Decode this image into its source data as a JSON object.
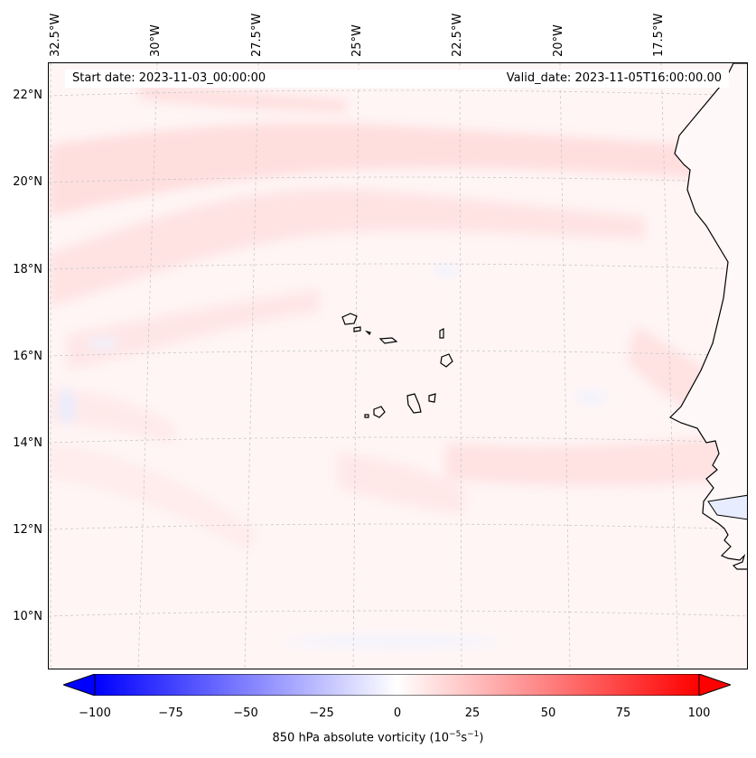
{
  "header": {
    "start_date": "Start date: 2023-11-03_00:00:00",
    "valid_date": "Valid_date: 2023-11-05T16:00:00.00"
  },
  "map": {
    "region": "Cape Verde / West African coast",
    "lon_labels": [
      "32.5°W",
      "30°W",
      "27.5°W",
      "25°W",
      "22.5°W",
      "20°W",
      "17.5°W"
    ],
    "lat_labels": [
      "22°N",
      "20°N",
      "18°N",
      "16°N",
      "14°N",
      "12°N",
      "10°N"
    ]
  },
  "colorbar": {
    "title": "850 hPa absolute vorticity (10",
    "title_exp1": "−5",
    "title_mid": "s",
    "title_exp2": "−1",
    "title_end": ")",
    "ticks": [
      "−100",
      "−75",
      "−50",
      "−25",
      "0",
      "25",
      "50",
      "75",
      "100"
    ],
    "colormap": "bwr",
    "min": -100,
    "max": 100,
    "low_color": "#0000ff",
    "mid_color": "#ffffff",
    "high_color": "#ff0000"
  }
}
